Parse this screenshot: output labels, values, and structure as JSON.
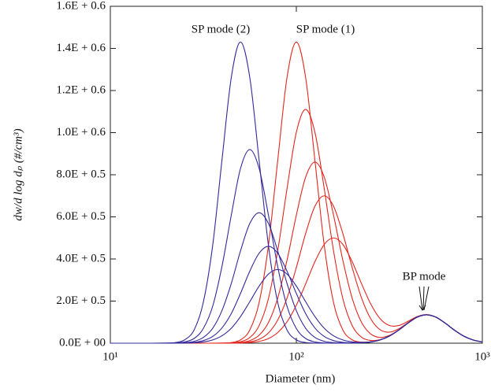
{
  "chart_data": {
    "type": "line",
    "x_label": "Diameter (nm)",
    "y_label": "dw/d log dₚ (#/cm³)",
    "annotations": [
      "SP mode (2)",
      "SP mode (1)",
      "BP mode"
    ],
    "xlog": true,
    "xlim": [
      10,
      1000
    ],
    "xticks": [
      {
        "value": 10,
        "label": "10¹"
      },
      {
        "value": 100,
        "label": "10²"
      },
      {
        "value": 1000,
        "label": "10³"
      }
    ],
    "ylim": [
      0,
      1600000
    ],
    "yticks": [
      {
        "value": 0,
        "label": "0.0E + 00"
      },
      {
        "value": 200000,
        "label": "2.0E + 0.5"
      },
      {
        "value": 400000,
        "label": "4.0E + 0.5"
      },
      {
        "value": 600000,
        "label": "6.0E + 0.5"
      },
      {
        "value": 800000,
        "label": "8.0E + 0.5"
      },
      {
        "value": 1000000,
        "label": "1.0E + 0.6"
      },
      {
        "value": 1200000,
        "label": "1.2E + 0.6"
      },
      {
        "value": 1400000,
        "label": "1.4E + 0.6"
      },
      {
        "value": 1600000,
        "label": "1.6E + 0.6"
      }
    ],
    "x": [
      10,
      11.2,
      12.6,
      14.1,
      15.8,
      17.8,
      20,
      22.4,
      25.1,
      28.2,
      31.6,
      35.5,
      39.8,
      44.7,
      50.1,
      56.2,
      63.1,
      70.8,
      79.4,
      89.1,
      100,
      112.2,
      125.9,
      141.3,
      158.5,
      177.8,
      199.5,
      223.9,
      251.2,
      281.8,
      316.2,
      354.8,
      398.1,
      446.7,
      501.2,
      562.3,
      631,
      707.9,
      794.3,
      891.3,
      1000
    ],
    "series": [
      {
        "color": "#e3261f",
        "values": [
          0,
          0,
          0,
          0,
          0,
          0,
          0,
          0,
          0,
          0,
          0,
          60,
          490,
          3100,
          15900,
          62800,
          193500,
          464000,
          867000,
          1262000,
          1430000,
          1262000,
          867000,
          464000,
          193500,
          62900,
          16400,
          5000,
          6400,
          15500,
          33600,
          61800,
          95400,
          123800,
          135000,
          123800,
          95400,
          61800,
          33600,
          15400,
          5900
        ]
      },
      {
        "color": "#e3261f",
        "values": [
          0,
          0,
          0,
          0,
          0,
          0,
          0,
          0,
          0,
          0,
          0,
          0,
          300,
          1500,
          7000,
          27000,
          83900,
          212000,
          438500,
          733700,
          1001200,
          1110000,
          1001200,
          733700,
          438500,
          212100,
          84400,
          28900,
          12900,
          16900,
          33900,
          61800,
          95400,
          123800,
          135000,
          123800,
          95400,
          61800,
          33600,
          15400,
          5900
        ]
      },
      {
        "color": "#e3261f",
        "values": [
          0,
          0,
          0,
          0,
          0,
          0,
          0,
          0,
          0,
          0,
          0,
          0,
          100,
          800,
          3300,
          12200,
          37800,
          98000,
          214100,
          393900,
          608000,
          788600,
          860000,
          788600,
          608000,
          394000,
          214600,
          99900,
          43700,
          27600,
          36900,
          62600,
          95500,
          123800,
          135000,
          123800,
          95400,
          61800,
          33600,
          15400,
          5900
        ]
      },
      {
        "color": "#e3261f",
        "values": [
          0,
          0,
          0,
          0,
          0,
          0,
          0,
          0,
          0,
          0,
          0,
          0,
          0,
          400,
          1800,
          6200,
          18700,
          48800,
          109900,
          214200,
          359800,
          520800,
          650300,
          700000,
          650300,
          520900,
          360300,
          216100,
          115800,
          64200,
          52300,
          68000,
          97200,
          124200,
          135000,
          123800,
          95400,
          61800,
          33600,
          15400,
          5900
        ]
      },
      {
        "color": "#e3261f",
        "values": [
          0,
          0,
          0,
          0,
          0,
          0,
          0,
          0,
          0,
          0,
          0,
          0,
          0,
          200,
          900,
          2900,
          8500,
          22000,
          50400,
          101500,
          180500,
          281500,
          387500,
          469000,
          500000,
          469100,
          388000,
          283400,
          186400,
          116900,
          84000,
          83800,
          103900,
          126700,
          135900,
          124000,
          95400,
          61800,
          33600,
          15400,
          5900
        ]
      },
      {
        "color": "#33299a",
        "values": [
          0,
          0,
          0,
          0,
          0,
          60,
          490,
          3100,
          15900,
          62800,
          193500,
          464000,
          867000,
          1262000,
          1430000,
          1262000,
          867000,
          464000,
          193500,
          62800,
          15900,
          3100,
          490,
          60,
          0,
          100,
          500,
          1900,
          5900,
          15400,
          33600,
          61800,
          95400,
          123800,
          135000,
          123800,
          95400,
          61800,
          33600,
          15400,
          5900
        ]
      },
      {
        "color": "#33299a",
        "values": [
          0,
          0,
          0,
          0,
          0,
          0,
          200,
          1200,
          5800,
          22400,
          69600,
          175700,
          363400,
          608100,
          829800,
          920000,
          829800,
          608100,
          363400,
          175700,
          69600,
          22400,
          5800,
          1200,
          200,
          100,
          500,
          1900,
          5900,
          15400,
          33600,
          61800,
          95400,
          123800,
          135000,
          123800,
          95400,
          61800,
          33600,
          15400,
          5900
        ]
      },
      {
        "color": "#33299a",
        "values": [
          0,
          0,
          0,
          0,
          0,
          0,
          100,
          500,
          2400,
          8800,
          27200,
          70700,
          154400,
          284000,
          438300,
          568500,
          620000,
          568500,
          438300,
          284000,
          154400,
          70700,
          27200,
          8800,
          2400,
          600,
          600,
          1900,
          5900,
          15400,
          33600,
          61800,
          95400,
          123800,
          135000,
          123800,
          95400,
          61800,
          33600,
          15400,
          5900
        ]
      },
      {
        "color": "#33299a",
        "values": [
          0,
          0,
          0,
          0,
          0,
          0,
          0,
          300,
          1200,
          4000,
          12300,
          32100,
          72200,
          140800,
          236400,
          342200,
          427300,
          460000,
          427300,
          342200,
          236400,
          140800,
          72200,
          32100,
          12300,
          4100,
          1700,
          2200,
          5900,
          15400,
          33600,
          61800,
          95400,
          123800,
          135000,
          123800,
          95400,
          61800,
          33600,
          15400,
          5900
        ]
      },
      {
        "color": "#33299a",
        "values": [
          0,
          0,
          0,
          0,
          0,
          0,
          0,
          100,
          600,
          2000,
          5900,
          15400,
          35200,
          71100,
          126400,
          197100,
          271300,
          328300,
          350000,
          328300,
          271300,
          197100,
          126400,
          71100,
          35200,
          15500,
          6400,
          3900,
          6500,
          15500,
          33600,
          61800,
          95400,
          123800,
          135000,
          123800,
          95400,
          61800,
          33600,
          15400,
          5900
        ]
      }
    ]
  }
}
